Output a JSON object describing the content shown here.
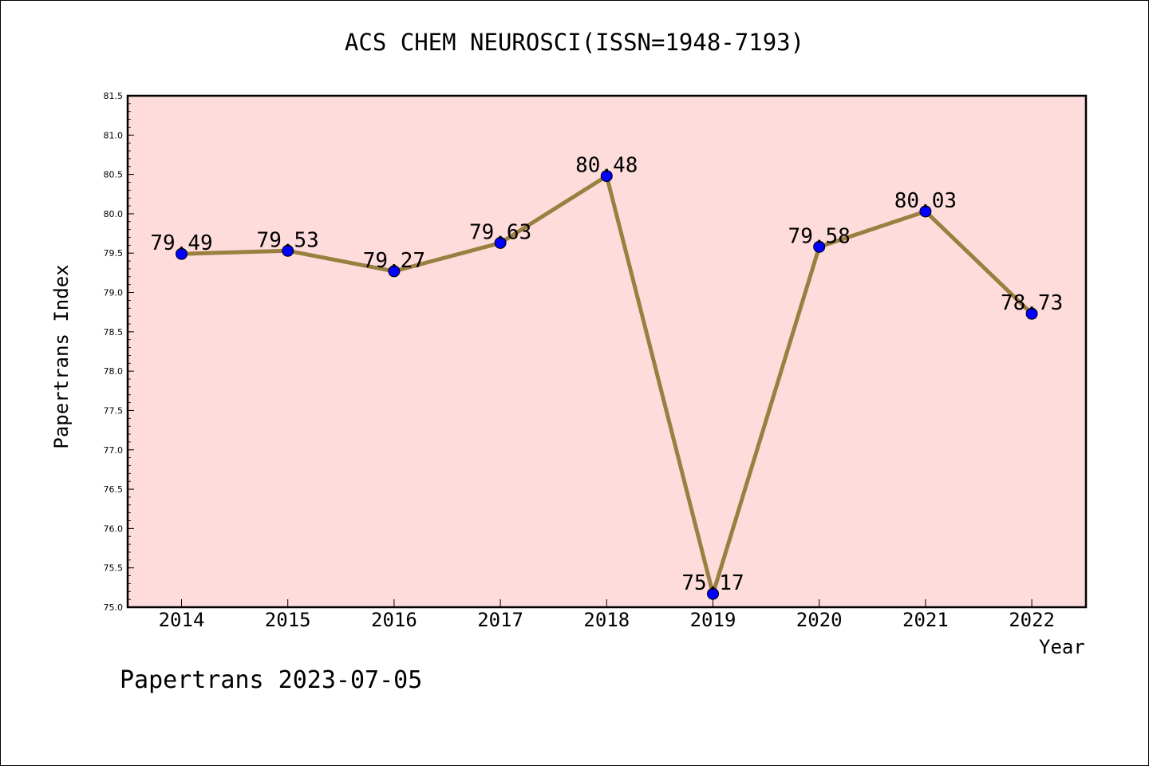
{
  "chart_data": {
    "type": "line",
    "title": "ACS CHEM NEUROSCI(ISSN=1948-7193)",
    "xlabel": "Year",
    "ylabel": "Papertrans Index",
    "categories": [
      "2014",
      "2015",
      "2016",
      "2017",
      "2018",
      "2019",
      "2020",
      "2021",
      "2022"
    ],
    "values": [
      79.49,
      79.53,
      79.27,
      79.63,
      80.48,
      75.17,
      79.58,
      80.03,
      78.73
    ],
    "data_labels": [
      "79.49",
      "79.53",
      "79.27",
      "79.63",
      "80.48",
      "75.17",
      "79.58",
      "80.03",
      "78.73"
    ],
    "ylim": [
      75.0,
      81.5
    ],
    "yticks": [
      "75.0",
      "75.5",
      "76.0",
      "76.5",
      "77.0",
      "77.5",
      "78.0",
      "78.5",
      "79.0",
      "79.5",
      "80.0",
      "80.5",
      "81.0",
      "81.5"
    ],
    "grid": false,
    "colors": {
      "plot_background": "#ffdcdc",
      "line": "#9a8040",
      "marker": "#0000ff"
    }
  },
  "footer": {
    "watermark": "Papertrans 2023-07-05"
  }
}
